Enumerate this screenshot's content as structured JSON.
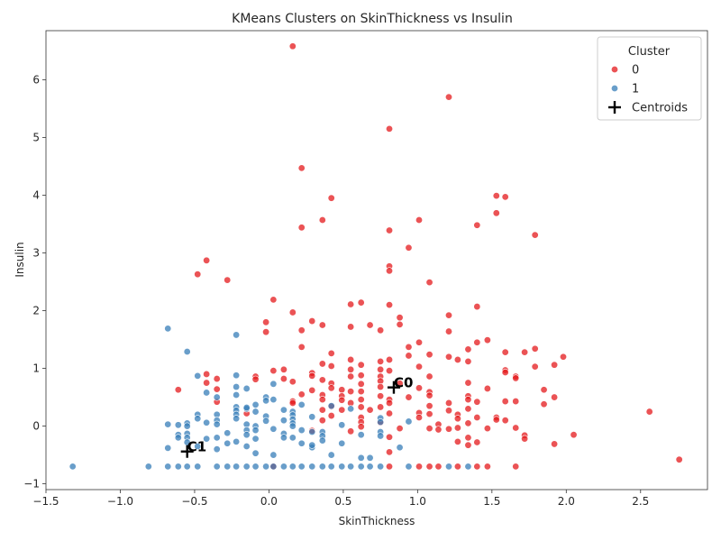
{
  "chart_data": {
    "type": "scatter",
    "title": "KMeans Clusters on SkinThickness vs Insulin",
    "xlabel": "SkinThickness",
    "ylabel": "Insulin",
    "xlim": [
      -1.5,
      2.95
    ],
    "ylim": [
      -1.1,
      6.85
    ],
    "xticks": [
      -1.5,
      -1.0,
      -0.5,
      0.0,
      0.5,
      1.0,
      1.5,
      2.0,
      2.5
    ],
    "xtick_labels": [
      "−1.5",
      "−1.0",
      "−0.5",
      "0.0",
      "0.5",
      "1.0",
      "1.5",
      "2.0",
      "2.5"
    ],
    "yticks": [
      -1,
      0,
      1,
      2,
      3,
      4,
      5,
      6
    ],
    "ytick_labels": [
      "−1",
      "0",
      "1",
      "2",
      "3",
      "4",
      "5",
      "6"
    ],
    "legend": {
      "title": "Cluster",
      "placement": "top-right",
      "entries": [
        {
          "label": "0",
          "color": "#e41a1c"
        },
        {
          "label": "1",
          "color": "#377eb8"
        },
        {
          "label": "Centroids",
          "color": "#000000",
          "marker": "plus"
        }
      ]
    },
    "colors": {
      "cluster0": "#e41a1c",
      "cluster1": "#377eb8",
      "centroid": "#000000"
    },
    "centroids": [
      {
        "label": "C0",
        "x": 0.84,
        "y": 0.67
      },
      {
        "label": "C1",
        "x": -0.55,
        "y": -0.44
      }
    ],
    "series": [
      {
        "name": "0",
        "points": [
          [
            0.16,
            6.58
          ],
          [
            1.21,
            5.7
          ],
          [
            0.81,
            5.15
          ],
          [
            0.22,
            4.47
          ],
          [
            0.42,
            3.95
          ],
          [
            1.53,
            3.99
          ],
          [
            1.59,
            3.97
          ],
          [
            1.53,
            3.69
          ],
          [
            1.79,
            3.31
          ],
          [
            0.36,
            3.57
          ],
          [
            1.01,
            3.57
          ],
          [
            1.4,
            3.48
          ],
          [
            0.22,
            3.44
          ],
          [
            0.81,
            3.39
          ],
          [
            0.94,
            3.09
          ],
          [
            -0.42,
            2.87
          ],
          [
            -0.28,
            2.53
          ],
          [
            -0.48,
            2.63
          ],
          [
            0.81,
            2.77
          ],
          [
            0.81,
            2.69
          ],
          [
            1.08,
            2.49
          ],
          [
            0.03,
            2.19
          ],
          [
            0.62,
            2.14
          ],
          [
            0.55,
            2.11
          ],
          [
            0.81,
            2.1
          ],
          [
            1.4,
            2.07
          ],
          [
            0.16,
            1.97
          ],
          [
            0.29,
            1.82
          ],
          [
            -0.02,
            1.8
          ],
          [
            0.36,
            1.75
          ],
          [
            0.68,
            1.75
          ],
          [
            0.88,
            1.88
          ],
          [
            0.88,
            1.76
          ],
          [
            1.21,
            1.92
          ],
          [
            0.55,
            1.72
          ],
          [
            0.75,
            1.66
          ],
          [
            -0.02,
            1.63
          ],
          [
            0.22,
            1.66
          ],
          [
            1.21,
            1.64
          ],
          [
            1.47,
            1.49
          ],
          [
            1.01,
            1.45
          ],
          [
            1.4,
            1.45
          ],
          [
            1.72,
            1.28
          ],
          [
            1.79,
            1.34
          ],
          [
            1.98,
            1.2
          ],
          [
            0.22,
            1.37
          ],
          [
            0.94,
            1.37
          ],
          [
            1.34,
            1.33
          ],
          [
            1.59,
            1.28
          ],
          [
            0.42,
            1.26
          ],
          [
            1.08,
            1.24
          ],
          [
            0.94,
            1.22
          ],
          [
            1.21,
            1.2
          ],
          [
            1.27,
            1.15
          ],
          [
            1.34,
            1.12
          ],
          [
            0.55,
            1.15
          ],
          [
            0.75,
            1.12
          ],
          [
            0.81,
            1.15
          ],
          [
            0.36,
            1.08
          ],
          [
            0.42,
            1.04
          ],
          [
            0.62,
            1.06
          ],
          [
            1.01,
            1.03
          ],
          [
            1.79,
            1.03
          ],
          [
            1.92,
            1.06
          ],
          [
            0.03,
            0.96
          ],
          [
            0.1,
            0.98
          ],
          [
            0.29,
            0.92
          ],
          [
            0.55,
            0.98
          ],
          [
            0.75,
            0.98
          ],
          [
            0.81,
            0.96
          ],
          [
            1.59,
            0.97
          ],
          [
            1.59,
            0.93
          ],
          [
            1.66,
            0.86
          ],
          [
            0.29,
            0.87
          ],
          [
            0.36,
            0.8
          ],
          [
            0.55,
            0.86
          ],
          [
            0.62,
            0.88
          ],
          [
            0.75,
            0.86
          ],
          [
            1.08,
            0.86
          ],
          [
            -0.42,
            0.9
          ],
          [
            -0.35,
            0.82
          ],
          [
            -0.09,
            0.86
          ],
          [
            0.1,
            0.82
          ],
          [
            0.16,
            0.77
          ],
          [
            -0.42,
            0.75
          ],
          [
            -0.09,
            0.81
          ],
          [
            0.42,
            0.74
          ],
          [
            0.62,
            0.73
          ],
          [
            0.75,
            0.78
          ],
          [
            0.88,
            0.74
          ],
          [
            1.34,
            0.75
          ],
          [
            1.66,
            0.83
          ],
          [
            0.42,
            0.66
          ],
          [
            0.75,
            0.68
          ],
          [
            1.01,
            0.66
          ],
          [
            1.47,
            0.65
          ],
          [
            1.85,
            0.63
          ],
          [
            -0.61,
            0.63
          ],
          [
            -0.35,
            0.64
          ],
          [
            0.22,
            0.55
          ],
          [
            0.29,
            0.62
          ],
          [
            0.49,
            0.63
          ],
          [
            0.55,
            0.6
          ],
          [
            0.62,
            0.6
          ],
          [
            1.08,
            0.59
          ],
          [
            0.36,
            0.54
          ],
          [
            0.49,
            0.52
          ],
          [
            0.75,
            0.52
          ],
          [
            0.94,
            0.5
          ],
          [
            1.08,
            0.53
          ],
          [
            1.34,
            0.52
          ],
          [
            1.92,
            0.5
          ],
          [
            0.16,
            0.43
          ],
          [
            0.36,
            0.46
          ],
          [
            0.49,
            0.45
          ],
          [
            0.62,
            0.46
          ],
          [
            0.81,
            0.46
          ],
          [
            1.34,
            0.46
          ],
          [
            1.59,
            0.43
          ],
          [
            1.66,
            0.43
          ],
          [
            -0.35,
            0.42
          ],
          [
            0.16,
            0.4
          ],
          [
            0.55,
            0.4
          ],
          [
            0.81,
            0.4
          ],
          [
            1.21,
            0.4
          ],
          [
            1.4,
            0.42
          ],
          [
            1.85,
            0.38
          ],
          [
            0.42,
            0.34
          ],
          [
            0.62,
            0.33
          ],
          [
            0.75,
            0.33
          ],
          [
            1.08,
            0.35
          ],
          [
            0.36,
            0.28
          ],
          [
            0.49,
            0.28
          ],
          [
            0.68,
            0.28
          ],
          [
            1.34,
            0.3
          ],
          [
            0.81,
            0.22
          ],
          [
            1.01,
            0.23
          ],
          [
            1.21,
            0.27
          ],
          [
            1.27,
            0.2
          ],
          [
            1.08,
            0.21
          ],
          [
            -0.15,
            0.22
          ],
          [
            2.56,
            0.25
          ],
          [
            0.42,
            0.18
          ],
          [
            0.62,
            0.15
          ],
          [
            1.01,
            0.15
          ],
          [
            1.27,
            0.13
          ],
          [
            1.4,
            0.15
          ],
          [
            1.53,
            0.15
          ],
          [
            1.53,
            0.11
          ],
          [
            1.59,
            0.1
          ],
          [
            0.36,
            0.1
          ],
          [
            0.62,
            0.07
          ],
          [
            0.75,
            0.06
          ],
          [
            1.14,
            0.03
          ],
          [
            1.34,
            0.05
          ],
          [
            0.62,
            -0.01
          ],
          [
            1.08,
            -0.04
          ],
          [
            1.14,
            -0.06
          ],
          [
            1.21,
            -0.05
          ],
          [
            1.27,
            -0.03
          ],
          [
            1.47,
            -0.04
          ],
          [
            1.66,
            -0.03
          ],
          [
            0.29,
            -0.08
          ],
          [
            0.55,
            -0.09
          ],
          [
            0.88,
            -0.04
          ],
          [
            1.72,
            -0.16
          ],
          [
            1.72,
            -0.22
          ],
          [
            2.05,
            -0.15
          ],
          [
            1.34,
            -0.2
          ],
          [
            1.27,
            -0.27
          ],
          [
            1.4,
            -0.28
          ],
          [
            0.81,
            -0.19
          ],
          [
            1.92,
            -0.31
          ],
          [
            1.34,
            -0.33
          ],
          [
            0.81,
            -0.45
          ],
          [
            2.76,
            -0.58
          ],
          [
            0.03,
            -0.7
          ],
          [
            0.81,
            -0.7
          ],
          [
            1.01,
            -0.7
          ],
          [
            1.08,
            -0.7
          ],
          [
            1.14,
            -0.7
          ],
          [
            1.27,
            -0.7
          ],
          [
            1.4,
            -0.7
          ],
          [
            1.47,
            -0.7
          ],
          [
            1.66,
            -0.7
          ]
        ]
      },
      {
        "name": "1",
        "points": [
          [
            -0.68,
            1.69
          ],
          [
            -0.22,
            1.58
          ],
          [
            -0.55,
            1.29
          ],
          [
            -0.48,
            0.87
          ],
          [
            -0.22,
            0.88
          ],
          [
            -0.15,
            0.65
          ],
          [
            -0.22,
            0.68
          ],
          [
            0.03,
            0.73
          ],
          [
            -0.42,
            0.58
          ],
          [
            -0.35,
            0.5
          ],
          [
            -0.22,
            0.54
          ],
          [
            -0.02,
            0.5
          ],
          [
            0.03,
            0.46
          ],
          [
            -0.09,
            0.37
          ],
          [
            -0.22,
            0.33
          ],
          [
            -0.15,
            0.3
          ],
          [
            -0.02,
            0.44
          ],
          [
            0.22,
            0.37
          ],
          [
            0.42,
            0.35
          ],
          [
            0.55,
            0.3
          ],
          [
            -0.22,
            0.27
          ],
          [
            -0.22,
            0.2
          ],
          [
            -0.15,
            0.32
          ],
          [
            -0.09,
            0.25
          ],
          [
            -0.35,
            0.2
          ],
          [
            -0.48,
            0.2
          ],
          [
            -0.48,
            0.13
          ],
          [
            -0.42,
            0.06
          ],
          [
            -0.35,
            0.1
          ],
          [
            -0.22,
            0.13
          ],
          [
            -0.02,
            0.17
          ],
          [
            -0.02,
            0.09
          ],
          [
            0.1,
            0.28
          ],
          [
            0.16,
            0.25
          ],
          [
            0.16,
            0.19
          ],
          [
            0.16,
            0.12
          ],
          [
            0.1,
            0.1
          ],
          [
            0.16,
            0.05
          ],
          [
            0.29,
            0.16
          ],
          [
            0.75,
            0.14
          ],
          [
            0.75,
            0.07
          ],
          [
            0.94,
            0.08
          ],
          [
            -0.55,
            0.05
          ],
          [
            -0.55,
            0.0
          ],
          [
            -0.61,
            0.02
          ],
          [
            -0.68,
            0.03
          ],
          [
            -0.35,
            0.03
          ],
          [
            -0.15,
            0.03
          ],
          [
            -0.09,
            0.0
          ],
          [
            0.16,
            0.0
          ],
          [
            0.49,
            0.02
          ],
          [
            -0.61,
            -0.15
          ],
          [
            -0.61,
            -0.2
          ],
          [
            -0.55,
            -0.13
          ],
          [
            -0.55,
            -0.2
          ],
          [
            -0.42,
            -0.22
          ],
          [
            -0.35,
            -0.2
          ],
          [
            -0.28,
            -0.12
          ],
          [
            -0.15,
            -0.07
          ],
          [
            -0.15,
            -0.15
          ],
          [
            -0.09,
            -0.07
          ],
          [
            -0.09,
            -0.22
          ],
          [
            0.03,
            -0.05
          ],
          [
            0.1,
            -0.13
          ],
          [
            0.1,
            -0.2
          ],
          [
            0.16,
            -0.2
          ],
          [
            0.22,
            -0.07
          ],
          [
            0.29,
            -0.1
          ],
          [
            0.36,
            -0.1
          ],
          [
            0.36,
            -0.17
          ],
          [
            0.62,
            -0.15
          ],
          [
            0.75,
            -0.1
          ],
          [
            0.75,
            -0.17
          ],
          [
            0.88,
            -0.37
          ],
          [
            -0.68,
            -0.38
          ],
          [
            -0.55,
            -0.28
          ],
          [
            -0.48,
            -0.35
          ],
          [
            -0.35,
            -0.4
          ],
          [
            -0.28,
            -0.3
          ],
          [
            -0.22,
            -0.27
          ],
          [
            -0.15,
            -0.35
          ],
          [
            0.22,
            -0.3
          ],
          [
            0.29,
            -0.37
          ],
          [
            0.29,
            -0.33
          ],
          [
            0.36,
            -0.25
          ],
          [
            0.42,
            -0.5
          ],
          [
            0.49,
            -0.3
          ],
          [
            -0.09,
            -0.47
          ],
          [
            0.03,
            -0.5
          ],
          [
            0.62,
            -0.55
          ],
          [
            0.68,
            -0.55
          ],
          [
            -1.32,
            -0.7
          ],
          [
            -0.81,
            -0.7
          ],
          [
            -0.68,
            -0.7
          ],
          [
            -0.61,
            -0.7
          ],
          [
            -0.55,
            -0.7
          ],
          [
            -0.48,
            -0.7
          ],
          [
            -0.35,
            -0.7
          ],
          [
            -0.28,
            -0.7
          ],
          [
            -0.22,
            -0.7
          ],
          [
            -0.15,
            -0.7
          ],
          [
            -0.09,
            -0.7
          ],
          [
            -0.02,
            -0.7
          ],
          [
            0.03,
            -0.7
          ],
          [
            0.1,
            -0.7
          ],
          [
            0.16,
            -0.7
          ],
          [
            0.22,
            -0.7
          ],
          [
            0.29,
            -0.7
          ],
          [
            0.36,
            -0.7
          ],
          [
            0.42,
            -0.7
          ],
          [
            0.49,
            -0.7
          ],
          [
            0.55,
            -0.7
          ],
          [
            0.62,
            -0.7
          ],
          [
            0.68,
            -0.7
          ],
          [
            0.75,
            -0.7
          ],
          [
            0.94,
            -0.7
          ],
          [
            1.21,
            -0.7
          ],
          [
            1.34,
            -0.7
          ]
        ]
      }
    ]
  }
}
